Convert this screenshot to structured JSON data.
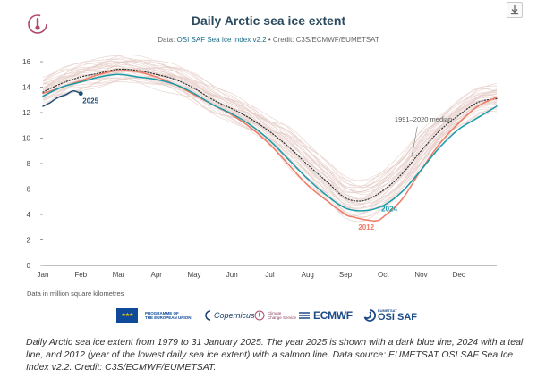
{
  "header": {
    "title": "Daily Arctic sea ice extent",
    "subtitle_prefix": "Data: ",
    "subtitle_link": "OSI SAF Sea Ice Index v2.2",
    "subtitle_suffix": " • Credit: C3S/ECMWF/EUMETSAT"
  },
  "toolbar": {
    "download_icon": "download-icon"
  },
  "units_note": "Data in million square kilometres",
  "partners": {
    "eu_line1": "PROGRAMME OF",
    "eu_line2": "THE EUROPEAN UNION",
    "copernicus": "Copernicus",
    "c3s_line1": "Climate",
    "c3s_line2": "Change Service",
    "ecmwf": "ECMWF",
    "osi_small": "EUMETSAT",
    "osi": "OSI SAF"
  },
  "caption": "Daily Arctic sea ice extent from 1979 to 31 January 2025. The year 2025 is shown with a dark blue line, 2024 with a teal line, and 2012 (year of the lowest daily sea ice extent) with a salmon line. Data source: EUMETSAT OSI SAF Sea Ice Index v2.2. Credit: C3S/ECMWF/EUMETSAT.",
  "colors": {
    "year_2025": "#1f4e79",
    "year_2024": "#1a9ba8",
    "year_2012": "#ef7a64",
    "median": "#333333",
    "history": "#e6cfc9",
    "axis": "#555555",
    "grid": "#eeeeee",
    "title": "#2b4a5e"
  },
  "chart_data": {
    "type": "line",
    "title": "Daily Arctic sea ice extent",
    "xlabel": "",
    "ylabel": "",
    "units": "million square kilometres",
    "x_unit": "month of year (0 = 1 Jan, 12 = 31 Dec)",
    "xlim": [
      0,
      12
    ],
    "ylim": [
      0,
      16
    ],
    "yticks": [
      0,
      2,
      4,
      6,
      8,
      10,
      12,
      14,
      16
    ],
    "month_labels": [
      "Jan",
      "Feb",
      "Mar",
      "Apr",
      "May",
      "Jun",
      "Jul",
      "Aug",
      "Sep",
      "Oct",
      "Nov",
      "Dec"
    ],
    "grid": false,
    "series": [
      {
        "name": "1991–2020 median",
        "key": "median",
        "style": "dotted",
        "label": "1991–2020 median",
        "x": [
          0,
          0.5,
          1,
          1.5,
          2,
          2.5,
          3,
          3.5,
          4,
          4.5,
          5,
          5.5,
          6,
          6.5,
          7,
          7.5,
          8,
          8.5,
          9,
          9.5,
          10,
          10.5,
          11,
          11.5,
          12
        ],
        "y": [
          13.6,
          14.3,
          14.8,
          15.1,
          15.4,
          15.3,
          15.0,
          14.6,
          13.9,
          13.0,
          12.3,
          11.5,
          10.5,
          9.3,
          7.9,
          6.6,
          5.3,
          5.1,
          5.9,
          7.2,
          9.0,
          10.6,
          11.8,
          12.8,
          13.1
        ]
      },
      {
        "name": "2012",
        "key": "year_2012",
        "style": "solid",
        "label": "2012",
        "x": [
          0,
          0.5,
          1,
          1.5,
          2,
          2.5,
          3,
          3.5,
          4,
          4.5,
          5,
          5.5,
          6,
          6.5,
          7,
          7.5,
          8,
          8.2,
          8.5,
          8.8,
          9,
          9.5,
          10,
          10.5,
          11,
          11.5,
          12
        ],
        "y": [
          13.5,
          14.0,
          14.5,
          15.0,
          15.3,
          15.2,
          14.8,
          14.2,
          13.4,
          12.6,
          11.8,
          10.8,
          9.5,
          7.9,
          6.3,
          5.1,
          4.0,
          3.8,
          3.6,
          3.5,
          3.8,
          5.2,
          7.5,
          9.6,
          11.2,
          12.5,
          13.2
        ]
      },
      {
        "name": "2024",
        "key": "year_2024",
        "style": "solid",
        "label": "2024",
        "x": [
          0,
          0.5,
          1,
          1.5,
          2,
          2.5,
          3,
          3.5,
          4,
          4.5,
          5,
          5.5,
          6,
          6.5,
          7,
          7.5,
          8,
          8.5,
          9,
          9.5,
          10,
          10.5,
          11,
          11.5,
          12
        ],
        "y": [
          13.3,
          14.0,
          14.4,
          14.8,
          15.0,
          14.8,
          14.6,
          14.2,
          13.5,
          12.6,
          11.9,
          11.0,
          9.8,
          8.3,
          6.8,
          5.5,
          4.5,
          4.3,
          4.7,
          5.8,
          7.5,
          9.3,
          10.7,
          11.6,
          12.5
        ]
      },
      {
        "name": "2025",
        "key": "year_2025",
        "style": "solid",
        "label": "2025",
        "x": [
          0,
          0.2,
          0.4,
          0.6,
          0.8,
          1.0
        ],
        "y": [
          12.5,
          12.8,
          13.2,
          13.4,
          13.7,
          13.5
        ]
      }
    ]
  }
}
